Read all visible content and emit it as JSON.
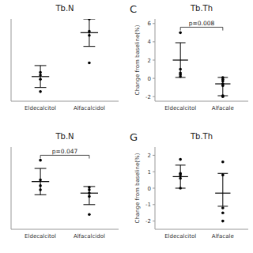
{
  "chart_data": [
    {
      "type": "dot_errorbar",
      "title": "Tb.N",
      "categories": [
        "Eldecalcitol",
        "Alfacalcidol"
      ],
      "values": [
        -0.7,
        2.5
      ],
      "sd_low": [
        -1.5,
        1.5
      ],
      "sd_high": [
        0.1,
        3.5
      ],
      "points": [
        [
          -0.4,
          -0.6,
          -0.9,
          -1.8
        ],
        [
          3.5,
          2.6,
          2.3,
          0.3
        ]
      ],
      "ylim": [
        -2.5,
        3.5
      ],
      "tick_labels": "x",
      "color": "black"
    },
    {
      "type": "dot_errorbar",
      "title": "Tb.Th",
      "panel_label": "C",
      "ylabel": "Change from baseline(%)",
      "categories": [
        "Eldecalcitol",
        "Alfacale"
      ],
      "values": [
        2.0,
        -0.6
      ],
      "sd_low": [
        0.1,
        -1.9
      ],
      "sd_high": [
        3.9,
        0.1
      ],
      "points": [
        [
          5.0,
          1.0,
          0.6,
          0.4,
          0.2
        ],
        [
          0.1,
          -0.1,
          -0.3,
          -0.6,
          -0.8,
          -1.9,
          -2.0
        ]
      ],
      "annotations": [
        "p=0.008"
      ],
      "ylim": [
        -2.5,
        6.5
      ],
      "yticks": [
        -2,
        0,
        2,
        4,
        6
      ],
      "color": "black"
    },
    {
      "type": "dot_errorbar",
      "title": "Tb.N",
      "categories": [
        "Eldecalcitol",
        "Alfacalcidol"
      ],
      "values": [
        0.4,
        -0.3
      ],
      "sd_low": [
        -0.4,
        -1.0
      ],
      "sd_high": [
        1.2,
        0.1
      ],
      "points": [
        [
          1.7,
          0.5,
          0.15,
          -0.1
        ],
        [
          0.05,
          -0.1,
          -0.3,
          -0.5,
          -1.6
        ]
      ],
      "annotations": [
        "p=0.047"
      ],
      "ylim": [
        -2.5,
        2.5
      ],
      "tick_labels": "x",
      "color": "black"
    },
    {
      "type": "dot_errorbar",
      "title": "Tb.Th",
      "panel_label": "G",
      "ylabel": "Change from baseline(%)",
      "categories": [
        "Eldecalcitol",
        "Alfacale"
      ],
      "values": [
        0.7,
        -0.3
      ],
      "sd_low": [
        0.0,
        -1.1
      ],
      "sd_high": [
        1.4,
        0.9
      ],
      "points": [
        [
          1.75,
          0.9,
          0.8,
          0.6,
          0.0
        ],
        [
          1.6,
          0.8,
          -1.2,
          -1.5,
          -2.0
        ]
      ],
      "ylim": [
        -2.5,
        2.5
      ],
      "yticks": [
        -2,
        -1,
        0,
        1,
        2
      ],
      "color": "black"
    }
  ]
}
